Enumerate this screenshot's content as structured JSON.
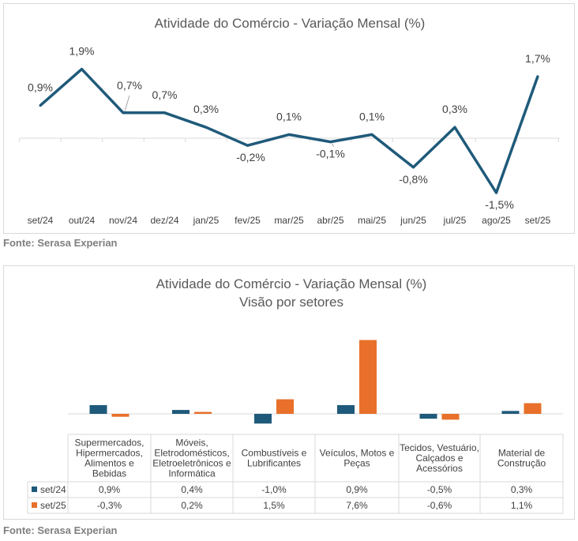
{
  "colors": {
    "series1": "#1f5a7a",
    "series2": "#e8702a",
    "text": "#404040",
    "source": "#7f7f7f",
    "axis": "#d9d9d9"
  },
  "chart_data": [
    {
      "type": "line",
      "title": "Atividade do Comércio  - Variação Mensal (%)",
      "categories": [
        "set/24",
        "out/24",
        "nov/24",
        "dez/24",
        "jan/25",
        "fev/25",
        "mar/25",
        "abr/25",
        "mai/25",
        "jun/25",
        "jul/25",
        "ago/25",
        "set/25"
      ],
      "values": [
        0.9,
        1.9,
        0.7,
        0.7,
        0.3,
        -0.2,
        0.1,
        -0.1,
        0.1,
        -0.8,
        0.3,
        -1.5,
        1.7
      ],
      "value_labels": [
        "0,9%",
        "1,9%",
        "0,7%",
        "0,7%",
        "0,3%",
        "-0,2%",
        "0,1%",
        "-0,1%",
        "0,1%",
        "-0,8%",
        "0,3%",
        "-1,5%",
        "1,7%"
      ],
      "grid": false,
      "color": "#1f5a7a"
    },
    {
      "type": "bar",
      "title": "Atividade do Comércio  - Variação Mensal (%)",
      "subtitle": "Visão por setores",
      "categories": [
        [
          "Supermercados,",
          "Hipermercados,",
          "Alimentos e",
          "Bebidas"
        ],
        [
          "Móveis,",
          "Eletrodomésticos,",
          "Eletroeletrônicos e",
          "Informática"
        ],
        [
          "Combustíveis e",
          "Lubrificantes"
        ],
        [
          "Veículos, Motos e",
          "Peças"
        ],
        [
          "Tecidos, Vestuário,",
          "Calçados e",
          "Acessórios"
        ],
        [
          "Material de",
          "Construção"
        ]
      ],
      "series": [
        {
          "name": "set/24",
          "values": [
            0.9,
            0.4,
            -1.0,
            0.9,
            -0.5,
            0.3
          ],
          "labels": [
            "0,9%",
            "0,4%",
            "-1,0%",
            "0,9%",
            "-0,5%",
            "0,3%"
          ],
          "color": "#1f5a7a"
        },
        {
          "name": "set/25",
          "values": [
            -0.3,
            0.2,
            1.5,
            7.6,
            -0.6,
            1.1
          ],
          "labels": [
            "-0,3%",
            "0,2%",
            "1,5%",
            "7,6%",
            "-0,6%",
            "1,1%"
          ],
          "color": "#e8702a"
        }
      ],
      "legend": "data-table",
      "grid": false
    }
  ],
  "sources": [
    "Fonte: Serasa Experian",
    "Fonte: Serasa Experian"
  ]
}
